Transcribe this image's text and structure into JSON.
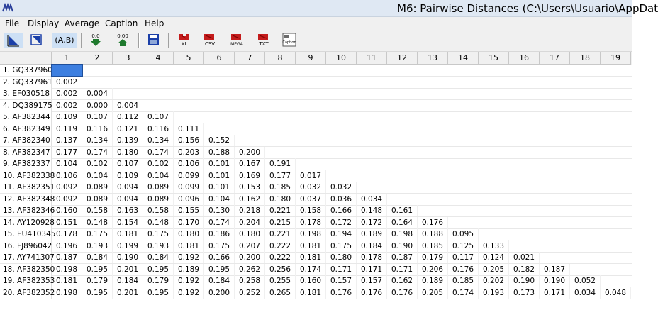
{
  "window": {
    "title": "M6: Pairwise Distances (C:\\Users\\Usuario\\AppDat",
    "app_icon": "mega-logo-icon"
  },
  "menu": [
    "File",
    "Display",
    "Average",
    "Caption",
    "Help"
  ],
  "toolbar": {
    "ab_label": "(A,B)",
    "dec_down_label": "0.0",
    "dec_up_label": "0.00",
    "export_xl": "XL",
    "export_csv": "CSV",
    "export_mega": "MEGA",
    "export_txt": "TXT",
    "caption_label": "Caption"
  },
  "columns": [
    "1",
    "2",
    "3",
    "4",
    "5",
    "6",
    "7",
    "8",
    "9",
    "10",
    "11",
    "12",
    "13",
    "14",
    "15",
    "16",
    "17",
    "18",
    "19"
  ],
  "rows": [
    {
      "label": "1. GQ337960",
      "values": []
    },
    {
      "label": "2. GQ337961",
      "values": [
        "0.002"
      ]
    },
    {
      "label": "3. EF030518",
      "values": [
        "0.002",
        "0.004"
      ]
    },
    {
      "label": "4. DQ389175",
      "values": [
        "0.002",
        "0.000",
        "0.004"
      ]
    },
    {
      "label": "5. AF382344",
      "values": [
        "0.109",
        "0.107",
        "0.112",
        "0.107"
      ]
    },
    {
      "label": "6. AF382349",
      "values": [
        "0.119",
        "0.116",
        "0.121",
        "0.116",
        "0.111"
      ]
    },
    {
      "label": "7. AF382340",
      "values": [
        "0.137",
        "0.134",
        "0.139",
        "0.134",
        "0.156",
        "0.152"
      ]
    },
    {
      "label": "8. AF382347",
      "values": [
        "0.177",
        "0.174",
        "0.180",
        "0.174",
        "0.203",
        "0.188",
        "0.200"
      ]
    },
    {
      "label": "9. AF382337",
      "values": [
        "0.104",
        "0.102",
        "0.107",
        "0.102",
        "0.106",
        "0.101",
        "0.167",
        "0.191"
      ]
    },
    {
      "label": "10. AF382338",
      "values": [
        "0.106",
        "0.104",
        "0.109",
        "0.104",
        "0.099",
        "0.101",
        "0.169",
        "0.177",
        "0.017"
      ]
    },
    {
      "label": "11. AF382351",
      "values": [
        "0.092",
        "0.089",
        "0.094",
        "0.089",
        "0.099",
        "0.101",
        "0.153",
        "0.185",
        "0.032",
        "0.032"
      ]
    },
    {
      "label": "12. AF382348",
      "values": [
        "0.092",
        "0.089",
        "0.094",
        "0.089",
        "0.096",
        "0.104",
        "0.162",
        "0.180",
        "0.037",
        "0.036",
        "0.034"
      ]
    },
    {
      "label": "13. AF382346",
      "values": [
        "0.160",
        "0.158",
        "0.163",
        "0.158",
        "0.155",
        "0.130",
        "0.218",
        "0.221",
        "0.158",
        "0.166",
        "0.148",
        "0.161"
      ]
    },
    {
      "label": "14. AY120928",
      "values": [
        "0.151",
        "0.148",
        "0.154",
        "0.148",
        "0.170",
        "0.174",
        "0.204",
        "0.215",
        "0.178",
        "0.172",
        "0.172",
        "0.164",
        "0.176"
      ]
    },
    {
      "label": "15. EU410345",
      "values": [
        "0.178",
        "0.175",
        "0.181",
        "0.175",
        "0.180",
        "0.186",
        "0.180",
        "0.221",
        "0.198",
        "0.194",
        "0.189",
        "0.198",
        "0.188",
        "0.095"
      ]
    },
    {
      "label": "16. FJ896042",
      "values": [
        "0.196",
        "0.193",
        "0.199",
        "0.193",
        "0.181",
        "0.175",
        "0.207",
        "0.222",
        "0.181",
        "0.175",
        "0.184",
        "0.190",
        "0.185",
        "0.125",
        "0.133"
      ]
    },
    {
      "label": "17. AY741307",
      "values": [
        "0.187",
        "0.184",
        "0.190",
        "0.184",
        "0.192",
        "0.166",
        "0.200",
        "0.222",
        "0.181",
        "0.180",
        "0.178",
        "0.187",
        "0.179",
        "0.117",
        "0.124",
        "0.021"
      ]
    },
    {
      "label": "18. AF382350",
      "values": [
        "0.198",
        "0.195",
        "0.201",
        "0.195",
        "0.189",
        "0.195",
        "0.262",
        "0.256",
        "0.174",
        "0.171",
        "0.171",
        "0.171",
        "0.206",
        "0.176",
        "0.205",
        "0.182",
        "0.187"
      ]
    },
    {
      "label": "19. AF382353",
      "values": [
        "0.181",
        "0.179",
        "0.184",
        "0.179",
        "0.192",
        "0.184",
        "0.258",
        "0.255",
        "0.160",
        "0.157",
        "0.157",
        "0.162",
        "0.189",
        "0.185",
        "0.202",
        "0.190",
        "0.190",
        "0.052"
      ]
    },
    {
      "label": "20. AF382352",
      "values": [
        "0.198",
        "0.195",
        "0.201",
        "0.195",
        "0.192",
        "0.200",
        "0.252",
        "0.265",
        "0.181",
        "0.176",
        "0.176",
        "0.176",
        "0.205",
        "0.174",
        "0.193",
        "0.173",
        "0.171",
        "0.034",
        "0.048"
      ]
    }
  ],
  "colors": {
    "selection": "#3d7fe0",
    "titlebar": "#dfe8f3",
    "toolbar": "#f0f0f0"
  }
}
